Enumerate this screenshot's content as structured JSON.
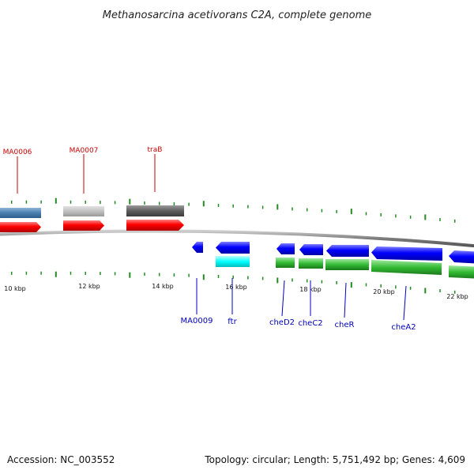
{
  "title": "Methanosarcina acetivorans C2A, complete genome",
  "footer": {
    "accession": "Accession: NC_003552",
    "topology": "Topology: circular; Length: 5,751,492 bp; Genes: 4,609"
  },
  "colors": {
    "forward_label": "#cc0000",
    "reverse_label": "#0000bb",
    "tick": "#228b22",
    "forward_cds": "#ff0000",
    "reverse_cds": "#0000ff",
    "reverse_rna": "#00ffff",
    "reverse_green": "#33bb33",
    "backbone": "#888888"
  },
  "scale": {
    "labels": [
      "10 kbp",
      "12 kbp",
      "14 kbp",
      "16 kbp",
      "18 kbp",
      "20 kbp",
      "22 kbp"
    ]
  },
  "genes_forward": [
    {
      "label": "MA0006",
      "name": "MA0006"
    },
    {
      "label": "MA0007",
      "name": "MA0007"
    },
    {
      "label": "traB",
      "name": "traB"
    }
  ],
  "genes_reverse": [
    {
      "label": "MA0009",
      "name": "MA0009"
    },
    {
      "label": "ftr",
      "name": "ftr"
    },
    {
      "label": "cheD2",
      "name": "cheD2"
    },
    {
      "label": "cheC2",
      "name": "cheC2"
    },
    {
      "label": "cheR",
      "name": "cheR"
    },
    {
      "label": "cheA2",
      "name": "cheA2"
    }
  ]
}
